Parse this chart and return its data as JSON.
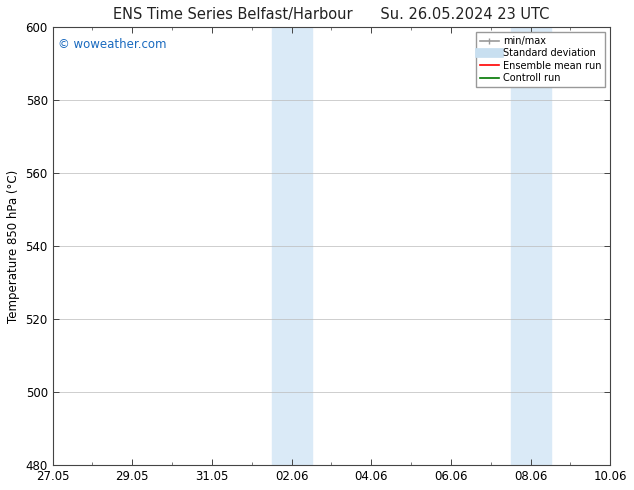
{
  "title_left": "ENS Time Series Belfast/Harbour",
  "title_right": "Su. 26.05.2024 23 UTC",
  "ylabel": "Temperature 850 hPa (°C)",
  "ylim": [
    480,
    600
  ],
  "yticks": [
    480,
    500,
    520,
    540,
    560,
    580,
    600
  ],
  "xlim_start": 0,
  "xlim_end": 14,
  "xtick_labels": [
    "27.05",
    "29.05",
    "31.05",
    "02.06",
    "04.06",
    "06.06",
    "08.06",
    "10.06"
  ],
  "xtick_positions": [
    0,
    2,
    4,
    6,
    8,
    10,
    12,
    14
  ],
  "minor_xtick_positions": [
    0,
    1,
    2,
    3,
    4,
    5,
    6,
    7,
    8,
    9,
    10,
    11,
    12,
    13,
    14
  ],
  "shaded_bands": [
    {
      "xmin": 5.5,
      "xmax": 6.0,
      "color": "#daeaf7"
    },
    {
      "xmin": 6.0,
      "xmax": 6.5,
      "color": "#daeaf7"
    },
    {
      "xmin": 11.5,
      "xmax": 12.0,
      "color": "#daeaf7"
    },
    {
      "xmin": 12.0,
      "xmax": 12.5,
      "color": "#daeaf7"
    }
  ],
  "watermark_text": "© woweather.com",
  "watermark_color": "#1a6abf",
  "legend_items": [
    {
      "label": "min/max",
      "color": "#999999",
      "lw": 1.2,
      "style": "line_with_caps"
    },
    {
      "label": "Standard deviation",
      "color": "#c8dff0",
      "lw": 7,
      "style": "solid"
    },
    {
      "label": "Ensemble mean run",
      "color": "#ff0000",
      "lw": 1.2,
      "style": "solid"
    },
    {
      "label": "Controll run",
      "color": "#007700",
      "lw": 1.2,
      "style": "solid"
    }
  ],
  "bg_color": "#ffffff",
  "plot_bg_color": "#ffffff",
  "grid_color": "#bbbbbb",
  "tick_label_fontsize": 8.5,
  "axis_label_fontsize": 8.5,
  "title_fontsize": 10.5
}
